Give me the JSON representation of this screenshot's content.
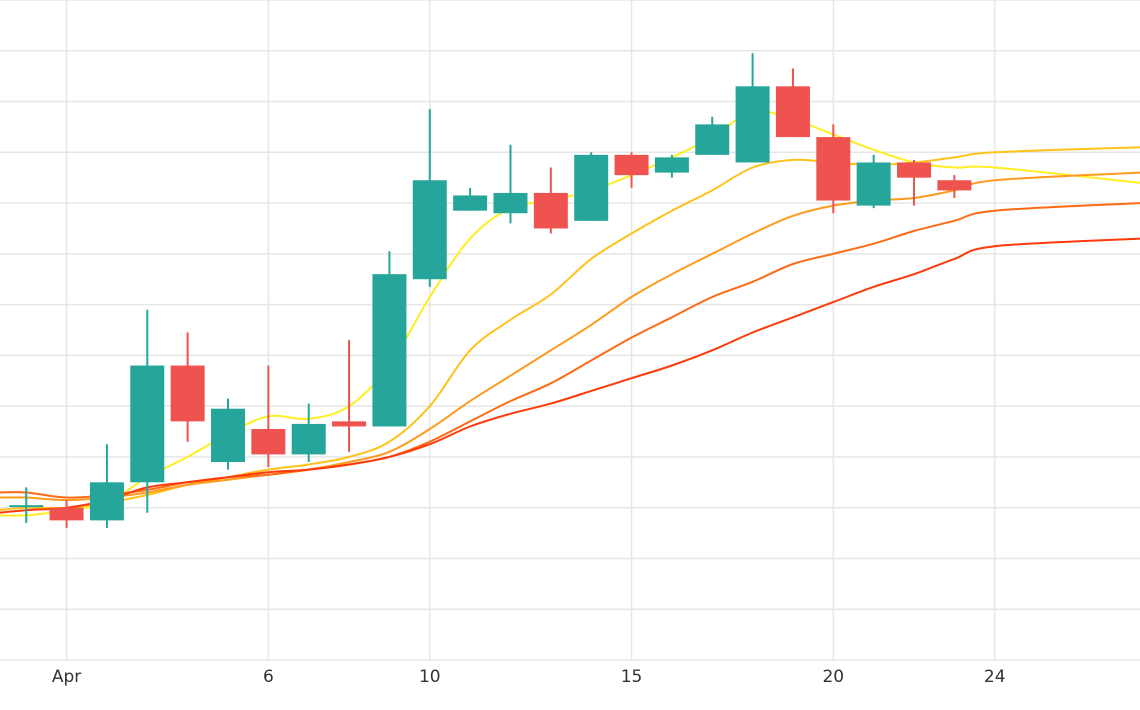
{
  "chart_data": {
    "type": "candlestick",
    "title": "",
    "xlabel": "",
    "ylabel": "",
    "x_tick_labels": [
      {
        "day": 1,
        "label": "Apr"
      },
      {
        "day": 6,
        "label": "6"
      },
      {
        "day": 10,
        "label": "10"
      },
      {
        "day": 15,
        "label": "15"
      },
      {
        "day": 20,
        "label": "20"
      },
      {
        "day": 24,
        "label": "24"
      }
    ],
    "xlim": [
      -0.65,
      27.6
    ],
    "ylim": [
      0,
      13
    ],
    "y_gridlines": [
      1,
      2,
      3,
      4,
      5,
      6,
      7,
      8,
      9,
      10,
      11,
      12,
      13
    ],
    "grid": true,
    "legend": "none",
    "colors": {
      "up": "#26a69a",
      "down": "#ef5350",
      "ma_lines": [
        "#ffee22",
        "#ffc21a",
        "#ff9a1e",
        "#ff6a14",
        "#ff3a0a"
      ]
    },
    "candles": [
      {
        "day": 0,
        "open": 3.05,
        "high": 3.4,
        "low": 2.7,
        "close": 3.05
      },
      {
        "day": 1,
        "open": 3.0,
        "high": 3.15,
        "low": 2.6,
        "close": 2.75
      },
      {
        "day": 2,
        "open": 2.75,
        "high": 4.25,
        "low": 2.6,
        "close": 3.5
      },
      {
        "day": 3,
        "open": 3.5,
        "high": 6.9,
        "low": 2.9,
        "close": 5.8
      },
      {
        "day": 4,
        "open": 5.8,
        "high": 6.45,
        "low": 4.3,
        "close": 4.7
      },
      {
        "day": 5,
        "open": 3.9,
        "high": 5.15,
        "low": 3.75,
        "close": 4.95
      },
      {
        "day": 6,
        "open": 4.55,
        "high": 5.8,
        "low": 3.8,
        "close": 4.05
      },
      {
        "day": 7,
        "open": 4.05,
        "high": 5.05,
        "low": 3.9,
        "close": 4.65
      },
      {
        "day": 8,
        "open": 4.7,
        "high": 6.3,
        "low": 4.1,
        "close": 4.6
      },
      {
        "day": 9,
        "open": 4.6,
        "high": 8.05,
        "low": 4.6,
        "close": 7.6
      },
      {
        "day": 10,
        "open": 7.5,
        "high": 10.85,
        "low": 7.35,
        "close": 9.45
      },
      {
        "day": 11,
        "open": 8.85,
        "high": 9.3,
        "low": 8.85,
        "close": 9.15
      },
      {
        "day": 12,
        "open": 8.8,
        "high": 10.15,
        "low": 8.6,
        "close": 9.2
      },
      {
        "day": 13,
        "open": 9.2,
        "high": 9.7,
        "low": 8.4,
        "close": 8.5
      },
      {
        "day": 14,
        "open": 8.65,
        "high": 10.0,
        "low": 8.65,
        "close": 9.95
      },
      {
        "day": 15,
        "open": 9.95,
        "high": 10.0,
        "low": 9.3,
        "close": 9.55
      },
      {
        "day": 16,
        "open": 9.6,
        "high": 9.95,
        "low": 9.5,
        "close": 9.9
      },
      {
        "day": 17,
        "open": 9.95,
        "high": 10.7,
        "low": 9.95,
        "close": 10.55
      },
      {
        "day": 18,
        "open": 9.8,
        "high": 11.95,
        "low": 9.8,
        "close": 11.3
      },
      {
        "day": 19,
        "open": 11.3,
        "high": 11.65,
        "low": 10.3,
        "close": 10.3
      },
      {
        "day": 20,
        "open": 10.3,
        "high": 10.55,
        "low": 8.8,
        "close": 9.05
      },
      {
        "day": 21,
        "open": 8.95,
        "high": 9.95,
        "low": 8.9,
        "close": 9.8
      },
      {
        "day": 22,
        "open": 9.8,
        "high": 9.85,
        "low": 8.95,
        "close": 9.5
      },
      {
        "day": 23,
        "open": 9.45,
        "high": 9.55,
        "low": 9.1,
        "close": 9.25
      }
    ],
    "series": [
      {
        "color": "#ffee22",
        "points": [
          [
            -0.7,
            2.85
          ],
          [
            0,
            2.85
          ],
          [
            1,
            2.95
          ],
          [
            2,
            3.1
          ],
          [
            3,
            3.6
          ],
          [
            4,
            4.0
          ],
          [
            5,
            4.45
          ],
          [
            6,
            4.8
          ],
          [
            7,
            4.75
          ],
          [
            8,
            5.0
          ],
          [
            9,
            5.8
          ],
          [
            10,
            7.15
          ],
          [
            11,
            8.3
          ],
          [
            12,
            8.9
          ],
          [
            13,
            9.05
          ],
          [
            14,
            9.25
          ],
          [
            15,
            9.55
          ],
          [
            16,
            9.9
          ],
          [
            17,
            10.3
          ],
          [
            18,
            10.8
          ],
          [
            19,
            10.65
          ],
          [
            20,
            10.35
          ],
          [
            21,
            10.05
          ],
          [
            22,
            9.8
          ],
          [
            23,
            9.7
          ],
          [
            24,
            9.7
          ],
          [
            27.6,
            9.4
          ]
        ]
      },
      {
        "color": "#ffc21a",
        "points": [
          [
            -0.7,
            2.95
          ],
          [
            0,
            3.0
          ],
          [
            1,
            3.0
          ],
          [
            2,
            3.1
          ],
          [
            3,
            3.25
          ],
          [
            4,
            3.45
          ],
          [
            5,
            3.6
          ],
          [
            6,
            3.75
          ],
          [
            7,
            3.85
          ],
          [
            8,
            4.0
          ],
          [
            9,
            4.3
          ],
          [
            10,
            5.0
          ],
          [
            11,
            6.1
          ],
          [
            12,
            6.7
          ],
          [
            13,
            7.2
          ],
          [
            14,
            7.9
          ],
          [
            15,
            8.4
          ],
          [
            16,
            8.85
          ],
          [
            17,
            9.25
          ],
          [
            18,
            9.7
          ],
          [
            19,
            9.85
          ],
          [
            20,
            9.8
          ],
          [
            21,
            9.75
          ],
          [
            22,
            9.8
          ],
          [
            23,
            9.9
          ],
          [
            24,
            10.0
          ],
          [
            27.6,
            10.1
          ]
        ]
      },
      {
        "color": "#ff9a1e",
        "points": [
          [
            -0.7,
            3.2
          ],
          [
            0,
            3.2
          ],
          [
            1,
            3.15
          ],
          [
            2,
            3.2
          ],
          [
            3,
            3.3
          ],
          [
            4,
            3.45
          ],
          [
            5,
            3.55
          ],
          [
            6,
            3.65
          ],
          [
            7,
            3.75
          ],
          [
            8,
            3.9
          ],
          [
            9,
            4.1
          ],
          [
            10,
            4.55
          ],
          [
            11,
            5.1
          ],
          [
            12,
            5.6
          ],
          [
            13,
            6.1
          ],
          [
            14,
            6.6
          ],
          [
            15,
            7.15
          ],
          [
            16,
            7.6
          ],
          [
            17,
            8.0
          ],
          [
            18,
            8.4
          ],
          [
            19,
            8.75
          ],
          [
            20,
            8.95
          ],
          [
            21,
            9.05
          ],
          [
            22,
            9.1
          ],
          [
            23,
            9.25
          ],
          [
            24,
            9.45
          ],
          [
            27.6,
            9.6
          ]
        ]
      },
      {
        "color": "#ff6a14",
        "points": [
          [
            -0.7,
            3.3
          ],
          [
            0,
            3.3
          ],
          [
            1,
            3.2
          ],
          [
            2,
            3.25
          ],
          [
            3,
            3.35
          ],
          [
            4,
            3.5
          ],
          [
            5,
            3.6
          ],
          [
            6,
            3.65
          ],
          [
            7,
            3.75
          ],
          [
            8,
            3.85
          ],
          [
            9,
            4.0
          ],
          [
            10,
            4.3
          ],
          [
            11,
            4.7
          ],
          [
            12,
            5.1
          ],
          [
            13,
            5.45
          ],
          [
            14,
            5.9
          ],
          [
            15,
            6.35
          ],
          [
            16,
            6.75
          ],
          [
            17,
            7.15
          ],
          [
            18,
            7.45
          ],
          [
            19,
            7.8
          ],
          [
            20,
            8.0
          ],
          [
            21,
            8.2
          ],
          [
            22,
            8.45
          ],
          [
            23,
            8.65
          ],
          [
            24,
            8.85
          ],
          [
            27.6,
            9.0
          ]
        ]
      },
      {
        "color": "#ff3a0a",
        "points": [
          [
            -0.7,
            2.9
          ],
          [
            0,
            2.95
          ],
          [
            1,
            3.0
          ],
          [
            2,
            3.15
          ],
          [
            3,
            3.4
          ],
          [
            4,
            3.5
          ],
          [
            5,
            3.6
          ],
          [
            6,
            3.7
          ],
          [
            7,
            3.75
          ],
          [
            8,
            3.85
          ],
          [
            9,
            4.0
          ],
          [
            10,
            4.25
          ],
          [
            11,
            4.6
          ],
          [
            12,
            4.85
          ],
          [
            13,
            5.05
          ],
          [
            14,
            5.3
          ],
          [
            15,
            5.55
          ],
          [
            16,
            5.8
          ],
          [
            17,
            6.1
          ],
          [
            18,
            6.45
          ],
          [
            19,
            6.75
          ],
          [
            20,
            7.05
          ],
          [
            21,
            7.35
          ],
          [
            22,
            7.6
          ],
          [
            23,
            7.9
          ],
          [
            24,
            8.15
          ],
          [
            27.6,
            8.3
          ]
        ]
      }
    ]
  }
}
